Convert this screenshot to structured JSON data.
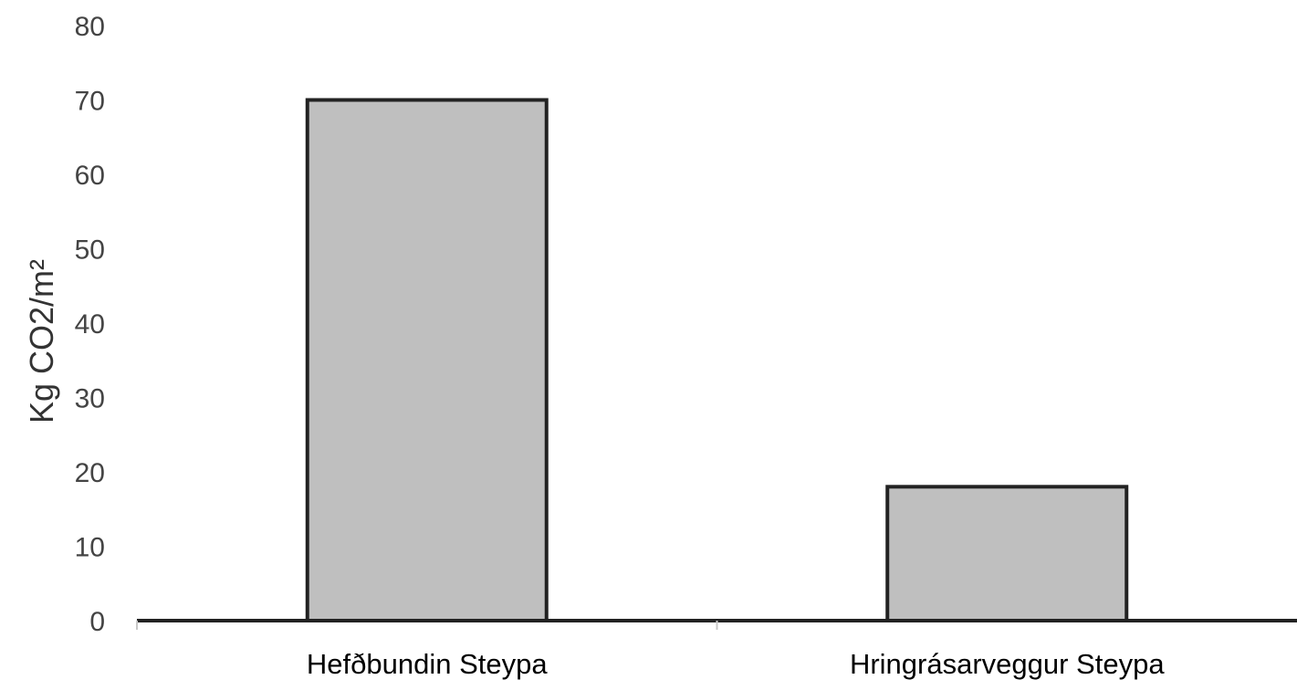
{
  "chart_data": {
    "type": "bar",
    "title": "",
    "xlabel": "",
    "ylabel": "Kg CO2/m²",
    "categories": [
      "Hefðbundin Steypa",
      "Hringrásarveggur Steypa"
    ],
    "values": [
      70,
      18
    ],
    "ylim": [
      0,
      80
    ],
    "yticks": [
      0,
      10,
      20,
      30,
      40,
      50,
      60,
      70,
      80
    ],
    "ytick_labels": [
      "0",
      "10",
      "20",
      "30",
      "40",
      "50",
      "60",
      "70",
      "80"
    ],
    "grid": false,
    "legend": "none",
    "bar_fill": "#bfbfbf",
    "bar_stroke": "#222222",
    "axis_color": "#222222"
  }
}
